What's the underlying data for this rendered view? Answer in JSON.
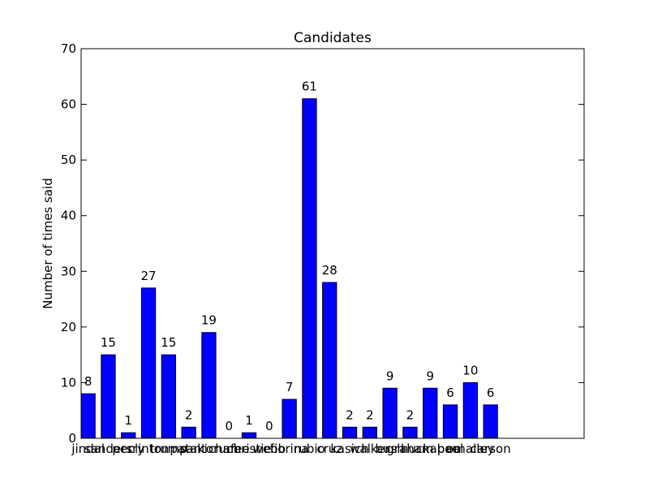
{
  "chart_data": {
    "type": "bar",
    "title": "Candidates",
    "y_label": "Number of times said",
    "categories": [
      "jindal",
      "sanders",
      "perry",
      "clinton",
      "trump",
      "pataki",
      "santorum",
      "chafee",
      "christie",
      "webb",
      "fiorina",
      "rubio",
      "cruz",
      "kasich",
      "walker",
      "bush",
      "graham",
      "huckabee",
      "paul",
      "omalley",
      "carson"
    ],
    "values": [
      8,
      15,
      1,
      27,
      15,
      2,
      19,
      0,
      1,
      0,
      7,
      61,
      28,
      2,
      2,
      9,
      2,
      9,
      6,
      10,
      6
    ],
    "color": "#0000ff",
    "ylim": [
      0,
      70
    ],
    "yticks": [
      0,
      10,
      20,
      30,
      40,
      50,
      60,
      70
    ],
    "grid": false
  }
}
